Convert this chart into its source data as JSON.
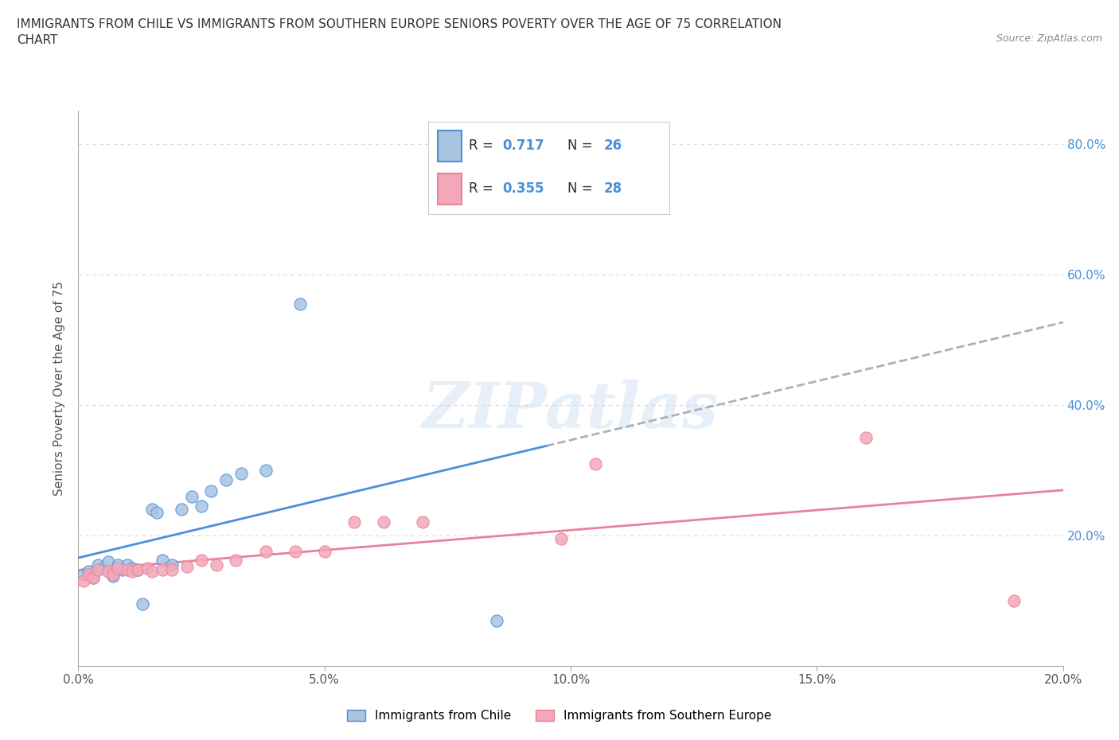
{
  "title": "IMMIGRANTS FROM CHILE VS IMMIGRANTS FROM SOUTHERN EUROPE SENIORS POVERTY OVER THE AGE OF 75 CORRELATION\nCHART",
  "source": "Source: ZipAtlas.com",
  "ylabel": "Seniors Poverty Over the Age of 75",
  "legend_label1": "Immigrants from Chile",
  "legend_label2": "Immigrants from Southern Europe",
  "R1": 0.717,
  "N1": 26,
  "R2": 0.355,
  "N2": 28,
  "color1": "#a8c4e0",
  "color2": "#f4a7b9",
  "line1_color": "#4a90d9",
  "line2_color": "#e8829a",
  "xlim": [
    0.0,
    0.2
  ],
  "ylim": [
    0.0,
    0.85
  ],
  "xticks": [
    0.0,
    0.05,
    0.1,
    0.15,
    0.2
  ],
  "yticks": [
    0.0,
    0.2,
    0.4,
    0.6,
    0.8
  ],
  "xtick_labels": [
    "0.0%",
    "5.0%",
    "10.0%",
    "15.0%",
    "20.0%"
  ],
  "ytick_labels_right": [
    "",
    "20.0%",
    "40.0%",
    "60.0%",
    "80.0%"
  ],
  "chile_x": [
    0.001,
    0.002,
    0.003,
    0.004,
    0.005,
    0.006,
    0.007,
    0.008,
    0.009,
    0.01,
    0.011,
    0.012,
    0.013,
    0.015,
    0.016,
    0.017,
    0.019,
    0.021,
    0.023,
    0.025,
    0.027,
    0.03,
    0.033,
    0.038,
    0.085,
    0.045
  ],
  "chile_y": [
    0.14,
    0.145,
    0.135,
    0.155,
    0.15,
    0.16,
    0.138,
    0.155,
    0.148,
    0.155,
    0.15,
    0.148,
    0.095,
    0.24,
    0.235,
    0.162,
    0.155,
    0.24,
    0.26,
    0.245,
    0.268,
    0.285,
    0.295,
    0.3,
    0.07,
    0.555
  ],
  "europe_x": [
    0.001,
    0.002,
    0.003,
    0.004,
    0.006,
    0.007,
    0.008,
    0.01,
    0.011,
    0.012,
    0.014,
    0.015,
    0.017,
    0.019,
    0.022,
    0.025,
    0.028,
    0.032,
    0.038,
    0.044,
    0.05,
    0.056,
    0.062,
    0.07,
    0.098,
    0.105,
    0.16,
    0.19
  ],
  "europe_y": [
    0.13,
    0.14,
    0.135,
    0.148,
    0.145,
    0.14,
    0.15,
    0.148,
    0.145,
    0.148,
    0.15,
    0.145,
    0.148,
    0.148,
    0.152,
    0.162,
    0.155,
    0.162,
    0.175,
    0.175,
    0.175,
    0.22,
    0.22,
    0.22,
    0.195,
    0.31,
    0.35,
    0.1
  ],
  "background_color": "#ffffff",
  "grid_color": "#d8d8d8",
  "watermark": "ZIPatlas",
  "watermark_color": "#c5d8ee"
}
